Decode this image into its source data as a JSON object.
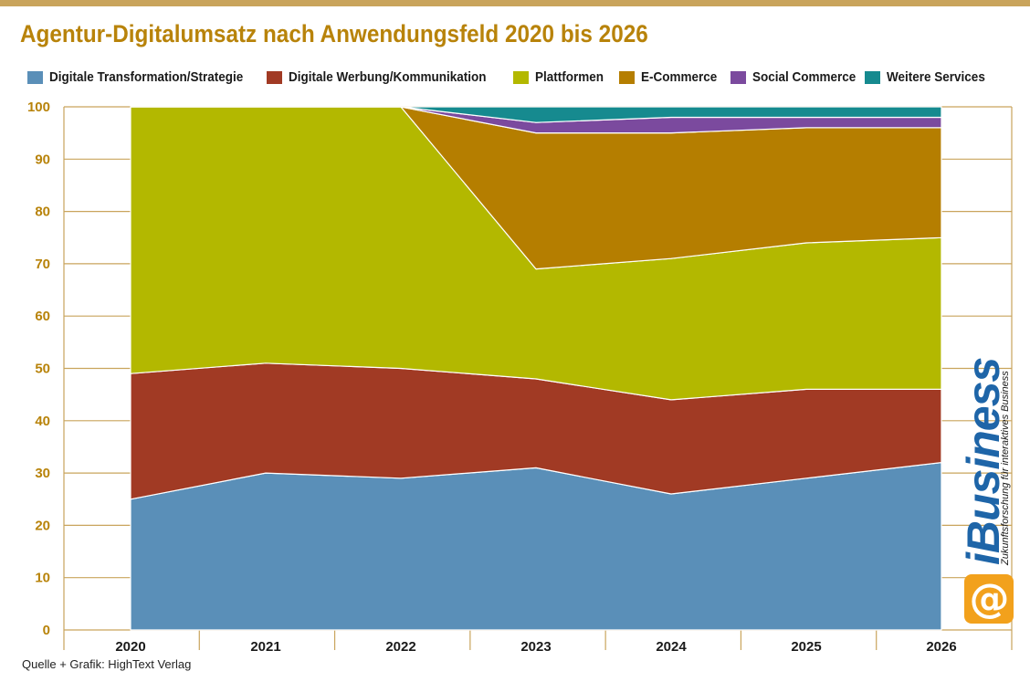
{
  "header": {
    "title": "Agentur-Digitalumsatz nach Anwendungsfeld 2020 bis 2026"
  },
  "footer": {
    "source": "Quelle + Grafik: HighText Verlag"
  },
  "logo": {
    "brand": "iBusiness",
    "tagline": "Zukunftsforschung für interaktives Business",
    "icon": "e-at-icon"
  },
  "colors": {
    "title": "#b8830a",
    "grid": "#c9a45c",
    "series": [
      "#5a8fb8",
      "#a13a24",
      "#b3b800",
      "#b57e00",
      "#7b4a9e",
      "#168a8f"
    ]
  },
  "chart_data": {
    "type": "area",
    "stacked": true,
    "title": "Agentur-Digitalumsatz nach Anwendungsfeld 2020 bis 2026",
    "x": [
      "2020",
      "2021",
      "2022",
      "2023",
      "2024",
      "2025",
      "2026"
    ],
    "ylim": [
      0,
      100
    ],
    "yticks": [
      0,
      10,
      20,
      30,
      40,
      50,
      60,
      70,
      80,
      90,
      100
    ],
    "grid": true,
    "legend_position": "top",
    "series": [
      {
        "name": "Digitale Transformation/Strategie",
        "values": [
          25,
          30,
          29,
          31,
          26,
          29,
          32
        ]
      },
      {
        "name": "Digitale Werbung/Kommunikation",
        "values": [
          24,
          21,
          21,
          17,
          18,
          17,
          14
        ]
      },
      {
        "name": "Plattformen",
        "values": [
          51,
          49,
          50,
          21,
          27,
          28,
          29
        ]
      },
      {
        "name": "E-Commerce",
        "values": [
          0,
          0,
          0,
          26,
          24,
          22,
          21
        ]
      },
      {
        "name": "Social Commerce",
        "values": [
          0,
          0,
          0,
          2,
          3,
          2,
          2
        ]
      },
      {
        "name": "Weitere Services",
        "values": [
          0,
          0,
          0,
          3,
          2,
          2,
          2
        ]
      }
    ]
  }
}
